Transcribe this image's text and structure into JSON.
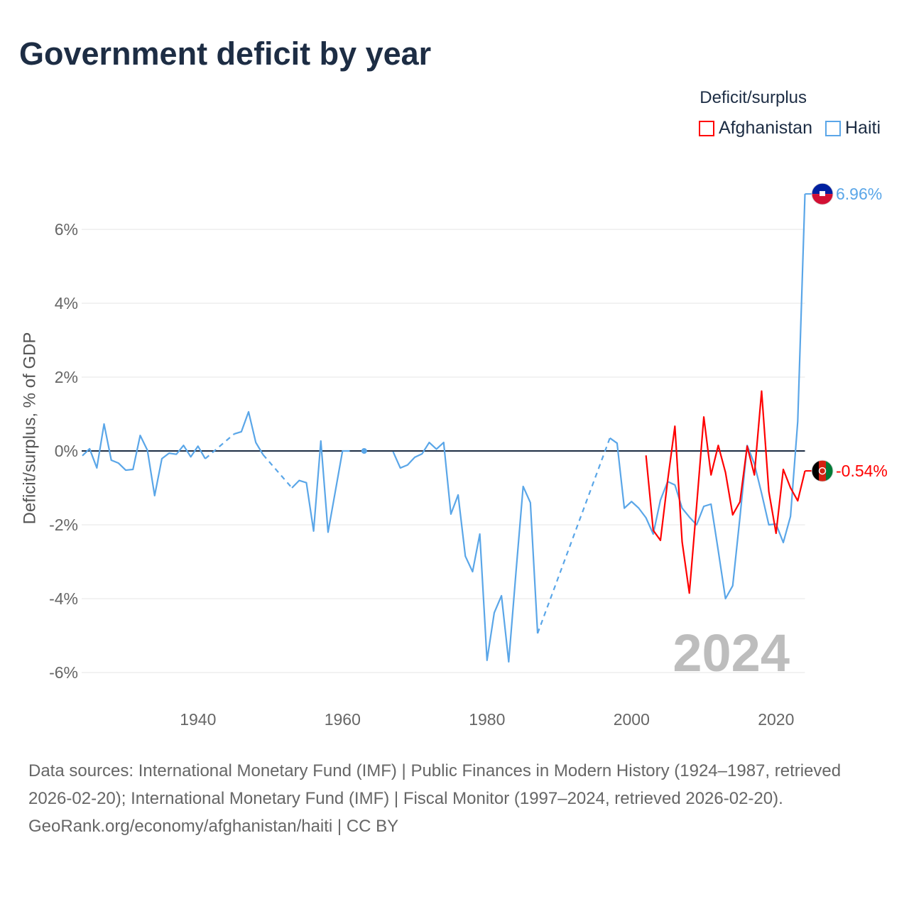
{
  "title": "Government deficit by year",
  "legend": {
    "title": "Deficit/surplus",
    "items": [
      {
        "label": "Afghanistan",
        "color": "#ff0000"
      },
      {
        "label": "Haiti",
        "color": "#5aa6e8"
      }
    ]
  },
  "year_label": "2024",
  "footer": {
    "sources": "Data sources: International Monetary Fund (IMF) | Public Finances in Modern History (1924–1987, retrieved 2026-02-20); International Monetary Fund (IMF) | Fiscal Monitor (1997–2024, retrieved 2026-02-20).",
    "credit": "GeoRank.org/economy/afghanistan/haiti | CC BY"
  },
  "chart_data": {
    "type": "line",
    "title": "Government deficit by year",
    "xlabel": "",
    "ylabel": "Deficit/surplus, % of GDP",
    "xlim": [
      1924,
      2024
    ],
    "ylim": [
      -6.5,
      7.2
    ],
    "x_ticks": [
      1940,
      1960,
      1980,
      2000,
      2020
    ],
    "y_ticks": [
      6,
      4,
      2,
      0,
      -2,
      -4,
      -6
    ],
    "y_tick_labels": [
      "6%",
      "4%",
      "2%",
      "0%",
      "-2%",
      "-4%",
      "-6%"
    ],
    "grid": true,
    "legend_position": "top-right",
    "series": [
      {
        "name": "Haiti",
        "color": "#5aa6e8",
        "end_label": "6.96%",
        "dashed_gaps": [
          [
            1941,
            1945
          ],
          [
            1949,
            1953
          ],
          [
            1987,
            1997
          ]
        ],
        "points": [
          [
            1924,
            -0.13
          ],
          [
            1925,
            0.06
          ],
          [
            1926,
            -0.46
          ],
          [
            1927,
            0.73
          ],
          [
            1928,
            -0.25
          ],
          [
            1929,
            -0.33
          ],
          [
            1930,
            -0.52
          ],
          [
            1931,
            -0.5
          ],
          [
            1932,
            0.42
          ],
          [
            1933,
            0.02
          ],
          [
            1934,
            -1.21
          ],
          [
            1935,
            -0.21
          ],
          [
            1936,
            -0.06
          ],
          [
            1937,
            -0.09
          ],
          [
            1938,
            0.15
          ],
          [
            1939,
            -0.16
          ],
          [
            1940,
            0.13
          ],
          [
            1941,
            -0.21
          ],
          [
            1945,
            0.46
          ],
          [
            1946,
            0.52
          ],
          [
            1947,
            1.06
          ],
          [
            1948,
            0.23
          ],
          [
            1949,
            -0.1
          ],
          [
            1953,
            -1.0
          ],
          [
            1954,
            -0.8
          ],
          [
            1955,
            -0.86
          ],
          [
            1956,
            -2.17
          ],
          [
            1957,
            0.27
          ],
          [
            1958,
            -2.2
          ],
          [
            1959,
            -1.1
          ],
          [
            1960,
            0.0
          ],
          [
            1961,
            0.0
          ],
          [
            1963,
            0.0
          ],
          [
            1967,
            -0.02
          ],
          [
            1968,
            -0.46
          ],
          [
            1969,
            -0.38
          ],
          [
            1970,
            -0.17
          ],
          [
            1971,
            -0.08
          ],
          [
            1972,
            0.23
          ],
          [
            1973,
            0.05
          ],
          [
            1974,
            0.23
          ],
          [
            1975,
            -1.71
          ],
          [
            1976,
            -1.19
          ],
          [
            1977,
            -2.85
          ],
          [
            1978,
            -3.27
          ],
          [
            1979,
            -2.25
          ],
          [
            1980,
            -5.67
          ],
          [
            1981,
            -4.38
          ],
          [
            1982,
            -3.92
          ],
          [
            1983,
            -5.71
          ],
          [
            1984,
            -3.3
          ],
          [
            1985,
            -0.96
          ],
          [
            1986,
            -1.4
          ],
          [
            1987,
            -4.94
          ],
          [
            1997,
            0.35
          ],
          [
            1998,
            0.21
          ],
          [
            1999,
            -1.55
          ],
          [
            2000,
            -1.37
          ],
          [
            2001,
            -1.55
          ],
          [
            2002,
            -1.81
          ],
          [
            2003,
            -2.25
          ],
          [
            2004,
            -1.33
          ],
          [
            2005,
            -0.83
          ],
          [
            2006,
            -0.92
          ],
          [
            2007,
            -1.55
          ],
          [
            2008,
            -1.79
          ],
          [
            2009,
            -2.0
          ],
          [
            2010,
            -1.5
          ],
          [
            2011,
            -1.44
          ],
          [
            2012,
            -2.7
          ],
          [
            2013,
            -4.0
          ],
          [
            2014,
            -3.65
          ],
          [
            2015,
            -1.8
          ],
          [
            2016,
            0.15
          ],
          [
            2017,
            -0.35
          ],
          [
            2018,
            -1.15
          ],
          [
            2019,
            -2.0
          ],
          [
            2020,
            -1.98
          ],
          [
            2021,
            -2.48
          ],
          [
            2022,
            -1.77
          ],
          [
            2023,
            0.8
          ],
          [
            2024,
            6.96
          ]
        ]
      },
      {
        "name": "Afghanistan",
        "color": "#ff0000",
        "end_label": "-0.54%",
        "dashed_gaps": [],
        "points": [
          [
            2002,
            -0.12
          ],
          [
            2003,
            -2.15
          ],
          [
            2004,
            -2.42
          ],
          [
            2005,
            -0.8
          ],
          [
            2006,
            0.67
          ],
          [
            2007,
            -2.46
          ],
          [
            2008,
            -3.85
          ],
          [
            2009,
            -1.5
          ],
          [
            2010,
            0.92
          ],
          [
            2011,
            -0.65
          ],
          [
            2012,
            0.15
          ],
          [
            2013,
            -0.58
          ],
          [
            2014,
            -1.73
          ],
          [
            2015,
            -1.38
          ],
          [
            2016,
            0.13
          ],
          [
            2017,
            -0.65
          ],
          [
            2018,
            1.62
          ],
          [
            2019,
            -1.1
          ],
          [
            2020,
            -2.23
          ],
          [
            2021,
            -0.5
          ],
          [
            2022,
            -1.0
          ],
          [
            2023,
            -1.35
          ],
          [
            2024,
            -0.54
          ]
        ]
      }
    ]
  }
}
